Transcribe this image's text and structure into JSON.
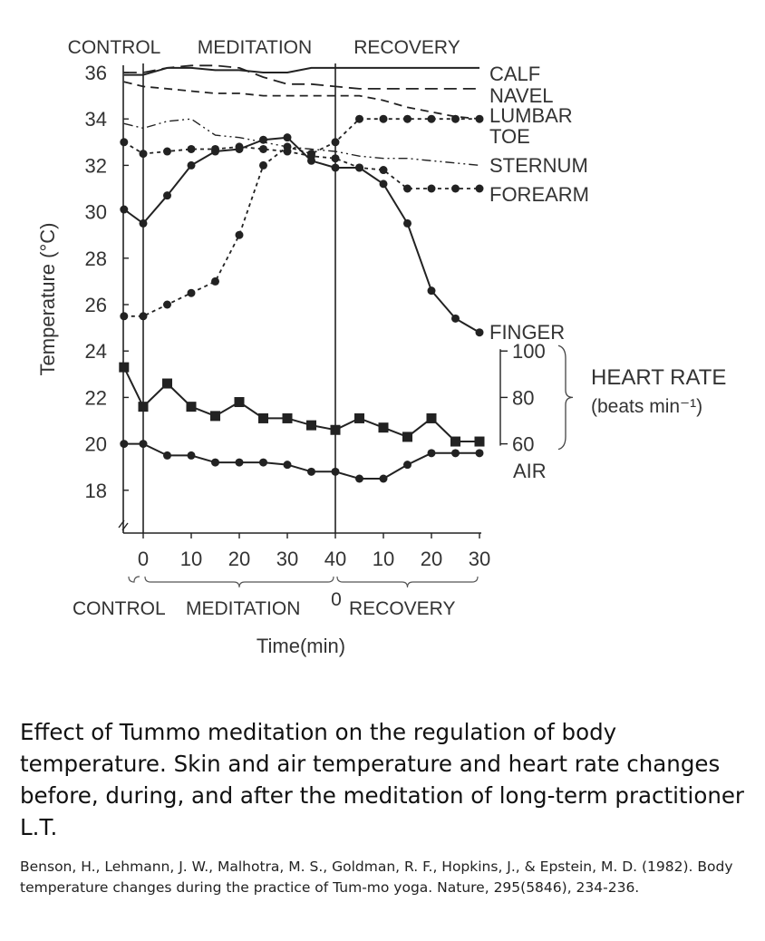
{
  "chart_data": {
    "type": "line",
    "ylabel": "Temperature (°C)",
    "xlabel": "Time(min)",
    "ylim": [
      16.5,
      36.5
    ],
    "yticks": [
      18,
      20,
      22,
      24,
      26,
      28,
      30,
      32,
      34,
      36
    ],
    "xtick_labels": [
      "0",
      "10",
      "20",
      "30",
      "40",
      "10",
      "20",
      "30"
    ],
    "top_phase_labels": [
      "CONTROL",
      "MEDITATION",
      "RECOVERY"
    ],
    "bottom_phase_labels": [
      "CONTROL",
      "MEDITATION",
      "0",
      "RECOVERY"
    ],
    "heart_rate_axis": {
      "label": "HEART RATE",
      "unit": "(beats min⁻¹)",
      "ticks": [
        "100",
        "80",
        "60"
      ]
    },
    "series": [
      {
        "name": "CALF",
        "style": "solid-line",
        "x": [
          -4,
          0,
          5,
          10,
          15,
          20,
          25,
          30,
          35,
          40,
          45,
          50,
          55,
          60,
          65,
          70
        ],
        "y": [
          35.9,
          35.9,
          36.2,
          36.2,
          36.1,
          36.1,
          36.0,
          36.0,
          36.2,
          36.2,
          36.2,
          36.2,
          36.2,
          36.2,
          36.2,
          36.2
        ]
      },
      {
        "name": "NAVEL",
        "style": "long-dash",
        "x": [
          -4,
          0,
          5,
          10,
          15,
          20,
          25,
          30,
          35,
          40,
          45,
          50,
          55,
          60,
          65,
          70
        ],
        "y": [
          36.0,
          36.0,
          36.2,
          36.3,
          36.3,
          36.2,
          35.8,
          35.5,
          35.5,
          35.4,
          35.3,
          35.3,
          35.3,
          35.3,
          35.3,
          35.3
        ]
      },
      {
        "name": "LUMBAR",
        "style": "dash",
        "x": [
          -4,
          0,
          5,
          10,
          15,
          20,
          25,
          30,
          35,
          40,
          45,
          50,
          55,
          60,
          65,
          70
        ],
        "y": [
          35.6,
          35.4,
          35.3,
          35.2,
          35.1,
          35.1,
          35.0,
          35.0,
          35.0,
          35.0,
          35.0,
          34.8,
          34.5,
          34.3,
          34.1,
          34.0
        ]
      },
      {
        "name": "TOE",
        "style": "dotted-dots",
        "x": [
          -4,
          0,
          5,
          10,
          15,
          20,
          25,
          30,
          35,
          40,
          45,
          50,
          55,
          60,
          65,
          70
        ],
        "y": [
          25.5,
          25.5,
          26.0,
          26.5,
          27.0,
          29.0,
          32.0,
          32.8,
          32.5,
          33.0,
          34.0,
          34.0,
          34.0,
          34.0,
          34.0,
          34.0
        ]
      },
      {
        "name": "STERNUM",
        "style": "dash-dot-dot",
        "x": [
          -4,
          0,
          5,
          10,
          15,
          20,
          25,
          30,
          35,
          40,
          45,
          50,
          55,
          60,
          65,
          70
        ],
        "y": [
          33.8,
          33.6,
          33.9,
          34.0,
          33.3,
          33.2,
          33.0,
          32.8,
          32.7,
          32.6,
          32.4,
          32.3,
          32.3,
          32.2,
          32.1,
          32.0
        ]
      },
      {
        "name": "FOREARM",
        "style": "dotted-dots",
        "x": [
          -4,
          0,
          5,
          10,
          15,
          20,
          25,
          30,
          35,
          40,
          45,
          50,
          55,
          60,
          65,
          70
        ],
        "y": [
          33.0,
          32.5,
          32.6,
          32.7,
          32.7,
          32.8,
          32.7,
          32.6,
          32.4,
          32.3,
          31.9,
          31.8,
          31.0,
          31.0,
          31.0,
          31.0
        ]
      },
      {
        "name": "FINGER",
        "style": "solid-dots",
        "x": [
          -4,
          0,
          5,
          10,
          15,
          20,
          25,
          30,
          35,
          40,
          45,
          50,
          55,
          60,
          65,
          70
        ],
        "y": [
          30.1,
          29.5,
          30.7,
          32.0,
          32.6,
          32.7,
          33.1,
          33.2,
          32.2,
          31.9,
          31.9,
          31.2,
          29.5,
          26.6,
          25.4,
          24.8
        ]
      },
      {
        "name": "HEART RATE",
        "style": "solid-squares",
        "x": [
          -4,
          0,
          5,
          10,
          15,
          20,
          25,
          30,
          35,
          40,
          45,
          50,
          55,
          60,
          65,
          70
        ],
        "y": [
          23.3,
          21.6,
          22.6,
          21.6,
          21.2,
          21.8,
          21.1,
          21.1,
          20.8,
          20.6,
          21.1,
          20.7,
          20.3,
          21.1,
          20.1,
          20.1
        ]
      },
      {
        "name": "AIR",
        "style": "solid-dots",
        "x": [
          -4,
          0,
          5,
          10,
          15,
          20,
          25,
          30,
          35,
          40,
          45,
          50,
          55,
          60,
          65,
          70
        ],
        "y": [
          20.0,
          20.0,
          19.5,
          19.5,
          19.2,
          19.2,
          19.2,
          19.1,
          18.8,
          18.8,
          18.5,
          18.5,
          19.1,
          19.6,
          19.6,
          19.6
        ]
      }
    ]
  },
  "caption": "Effect of Tummo meditation on the regulation of body temperature. Skin and air temperature and heart rate changes before, during, and after the meditation of long-term practitioner L.T.",
  "reference": "Benson, H., Lehmann, J. W., Malhotra, M. S., Goldman, R. F., Hopkins, J., & Epstein, M. D. (1982). Body temperature changes during the practice of Tum-mo yoga. Nature, 295(5846), 234-236."
}
